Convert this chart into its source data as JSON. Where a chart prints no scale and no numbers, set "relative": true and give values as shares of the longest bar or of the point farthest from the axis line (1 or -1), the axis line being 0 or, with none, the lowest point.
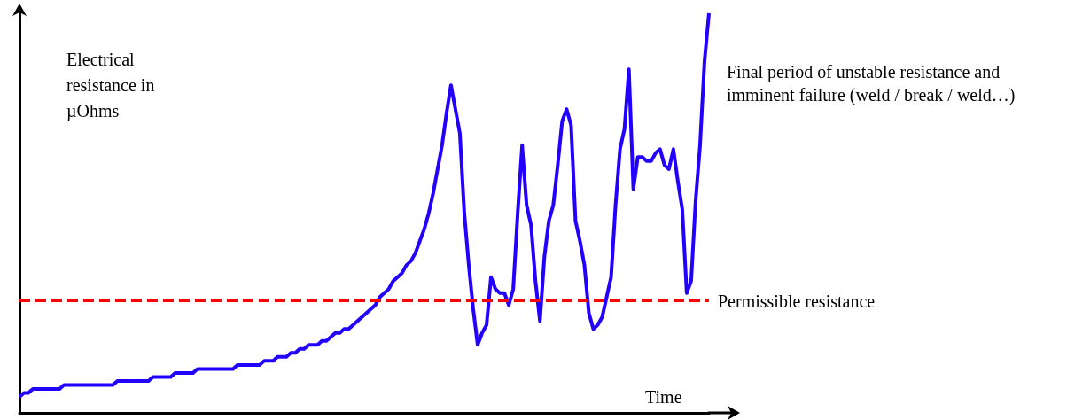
{
  "chart_data": {
    "type": "line",
    "relative": true,
    "xlabel": "Time",
    "ylabel": "Electrical resistance in µOhms",
    "marker": "none",
    "annotations": [
      "Final period of unstable resistance and imminent failure (weld / break / weld…)"
    ],
    "categories": [
      null,
      null,
      null,
      null,
      null,
      null,
      null,
      null,
      null,
      null,
      null,
      null,
      null,
      null,
      null,
      null,
      null,
      null,
      null,
      null,
      null,
      null,
      null,
      null,
      null,
      null,
      null,
      null,
      null,
      null,
      null,
      null,
      null,
      null,
      null,
      null,
      null,
      null,
      null,
      null,
      null,
      null,
      null,
      null,
      null,
      null,
      null,
      null,
      null,
      null,
      null,
      null,
      null,
      null,
      null,
      null,
      null,
      null,
      null,
      null,
      null,
      null,
      null,
      null,
      null,
      null,
      null,
      null,
      null,
      null,
      null,
      null,
      null,
      null,
      null,
      null,
      null,
      null,
      null,
      null,
      null,
      null,
      null,
      null,
      null,
      null,
      null,
      null,
      null,
      null,
      null,
      null,
      null,
      null,
      null,
      null,
      null,
      null,
      null,
      null,
      null,
      null,
      null,
      null,
      null,
      null,
      null,
      null,
      null,
      null,
      null,
      null,
      null,
      null,
      null,
      null,
      null,
      null,
      null,
      null,
      null,
      null,
      null,
      null,
      null,
      null,
      null,
      null,
      null,
      null,
      null,
      null,
      null,
      null,
      null,
      null,
      null,
      null,
      null,
      null,
      null,
      null,
      null,
      null,
      null,
      null,
      null,
      null,
      null,
      null,
      null,
      null,
      null,
      null,
      null,
      null
    ],
    "series": [
      {
        "color": "#2200ff",
        "values": [
          0.04,
          0.05,
          0.05,
          0.06,
          0.06,
          0.06,
          0.06,
          0.06,
          0.06,
          0.06,
          0.07,
          0.07,
          0.07,
          0.07,
          0.07,
          0.07,
          0.07,
          0.07,
          0.07,
          0.07,
          0.07,
          0.07,
          0.08,
          0.08,
          0.08,
          0.08,
          0.08,
          0.08,
          0.08,
          0.08,
          0.09,
          0.09,
          0.09,
          0.09,
          0.09,
          0.1,
          0.1,
          0.1,
          0.1,
          0.1,
          0.11,
          0.11,
          0.11,
          0.11,
          0.11,
          0.11,
          0.11,
          0.11,
          0.11,
          0.12,
          0.12,
          0.12,
          0.12,
          0.12,
          0.12,
          0.13,
          0.13,
          0.13,
          0.14,
          0.14,
          0.14,
          0.15,
          0.15,
          0.16,
          0.16,
          0.17,
          0.17,
          0.17,
          0.18,
          0.18,
          0.19,
          0.2,
          0.2,
          0.21,
          0.21,
          0.22,
          0.23,
          0.24,
          0.25,
          0.26,
          0.27,
          0.29,
          0.3,
          0.31,
          0.33,
          0.34,
          0.35,
          0.37,
          0.38,
          0.4,
          0.43,
          0.46,
          0.5,
          0.55,
          0.61,
          0.67,
          0.75,
          0.82,
          0.76,
          0.7,
          0.5,
          0.37,
          0.26,
          0.17,
          0.2,
          0.22,
          0.34,
          0.31,
          0.3,
          0.3,
          0.27,
          0.31,
          0.5,
          0.67,
          0.52,
          0.47,
          0.33,
          0.23,
          0.39,
          0.48,
          0.52,
          0.62,
          0.73,
          0.76,
          0.72,
          0.48,
          0.43,
          0.37,
          0.25,
          0.21,
          0.22,
          0.24,
          0.29,
          0.34,
          0.52,
          0.66,
          0.71,
          0.86,
          0.56,
          0.64,
          0.64,
          0.63,
          0.63,
          0.65,
          0.66,
          0.62,
          0.61,
          0.66,
          0.58,
          0.51,
          0.3,
          0.33,
          0.53,
          0.67,
          0.88,
          1
        ]
      }
    ],
    "ref_lines": [
      {
        "axis": "y",
        "value": 0.28,
        "label": "Permissible resistance",
        "color": "#ff0000",
        "line_style": "dashed"
      }
    ]
  }
}
